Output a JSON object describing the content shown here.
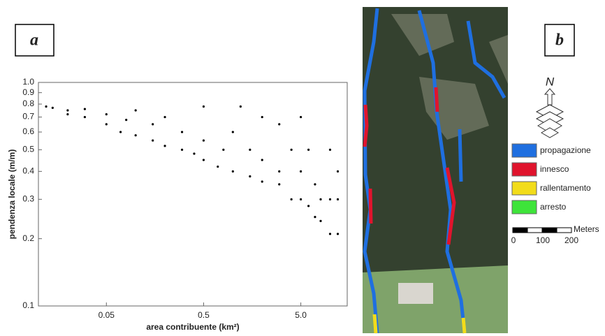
{
  "chart_data": {
    "type": "scatter",
    "xlabel": "area contribuente (km²)",
    "ylabel": "pendenza locale (m/m)",
    "xscale": "log",
    "yscale": "log",
    "color": "#000000",
    "xlim": [
      0.01,
      15
    ],
    "ylim": [
      0.1,
      1
    ],
    "xticks": [
      0.05,
      0.5,
      {
        "value": 5,
        "label": "5.0"
      }
    ],
    "yticks": [
      0.1,
      0.2,
      0.3,
      0.4,
      0.5,
      0.6,
      0.7,
      0.8,
      0.9,
      {
        "value": 1,
        "label": "1.0"
      }
    ],
    "x": [
      0.012,
      0.014,
      0.02,
      0.02,
      0.03,
      0.03,
      0.05,
      0.05,
      0.07,
      0.08,
      0.1,
      0.1,
      0.15,
      0.15,
      0.2,
      0.2,
      0.3,
      0.3,
      0.4,
      0.5,
      0.5,
      0.5,
      0.7,
      0.8,
      1,
      1,
      1.2,
      1.5,
      1.5,
      2,
      2,
      2,
      3,
      3,
      3,
      4,
      4,
      5,
      5,
      5,
      6,
      6,
      7,
      7,
      8,
      8,
      10,
      10,
      10,
      12,
      12,
      12
    ],
    "y": [
      0.78,
      0.77,
      0.75,
      0.72,
      0.7,
      0.76,
      0.65,
      0.72,
      0.6,
      0.68,
      0.58,
      0.75,
      0.55,
      0.65,
      0.52,
      0.7,
      0.5,
      0.6,
      0.48,
      0.45,
      0.55,
      0.78,
      0.42,
      0.5,
      0.4,
      0.6,
      0.78,
      0.38,
      0.5,
      0.36,
      0.45,
      0.7,
      0.35,
      0.4,
      0.65,
      0.3,
      0.5,
      0.3,
      0.4,
      0.7,
      0.28,
      0.5,
      0.25,
      0.35,
      0.3,
      0.24,
      0.3,
      0.5,
      0.21,
      0.21,
      0.3,
      0.4
    ]
  },
  "panel_labels": [
    "a",
    "b"
  ],
  "map": {
    "north": "N",
    "legend": [
      {
        "name": "propagazione",
        "color": "#1f6fe0"
      },
      {
        "name": "innesco",
        "color": "#e0142d"
      },
      {
        "name": "rallentamento",
        "color": "#f2dc1a"
      },
      {
        "name": "arresto",
        "color": "#3ee43a"
      }
    ],
    "scale": {
      "ticks": [
        "0",
        "100",
        "200"
      ],
      "unit": "Meters"
    }
  }
}
